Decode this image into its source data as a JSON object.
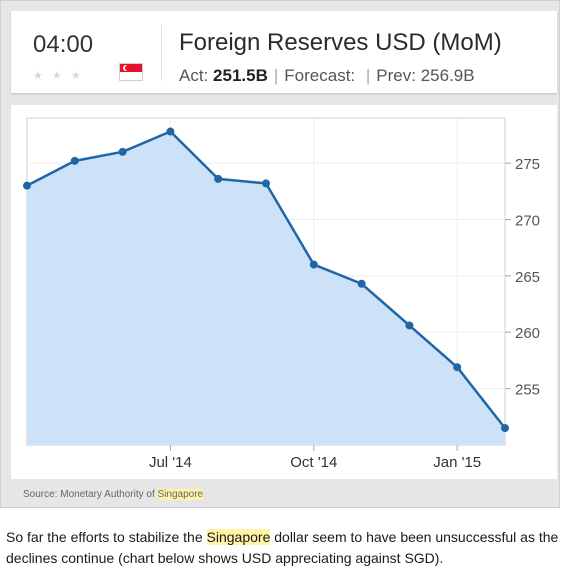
{
  "header": {
    "time": "04:00",
    "title": "Foreign Reserves USD (MoM)",
    "actual_label": "Act:",
    "actual_value": "251.5B",
    "forecast_label": "Forecast:",
    "forecast_value": "",
    "previous_label": "Prev:",
    "previous_value": "256.9B",
    "separator": "|",
    "flag_icon": "singapore-flag-icon"
  },
  "chart_data": {
    "type": "area",
    "title": "",
    "xlabel": "",
    "ylabel": "",
    "x": [
      "2014-04",
      "2014-05",
      "2014-06",
      "2014-07",
      "2014-08",
      "2014-09",
      "2014-10",
      "2014-11",
      "2014-12",
      "2015-01",
      "2015-02"
    ],
    "x_tick_labels": [
      "Jul '14",
      "Oct '14",
      "Jan '15"
    ],
    "x_tick_positions": [
      "2014-07",
      "2014-10",
      "2015-01"
    ],
    "values": [
      273.0,
      275.2,
      276.0,
      277.8,
      273.6,
      273.2,
      266.0,
      264.3,
      260.6,
      256.9,
      251.5
    ],
    "ylim": [
      250,
      279
    ],
    "y_ticks": [
      255,
      260,
      265,
      270,
      275
    ],
    "y_axis_side": "right",
    "grid": true,
    "legend": "none",
    "line_color": "#1f66a8",
    "fill_color": "#cde2f7"
  },
  "source": {
    "prefix": "Source: Monetary Authority of ",
    "highlight": "Singapore"
  },
  "paragraph": {
    "part1": "So far the efforts to stabilize the ",
    "highlight": "Singapore",
    "part2": " dollar seem to have been unsuccessful as the declines continue (chart below shows USD appreciating against SGD)."
  }
}
